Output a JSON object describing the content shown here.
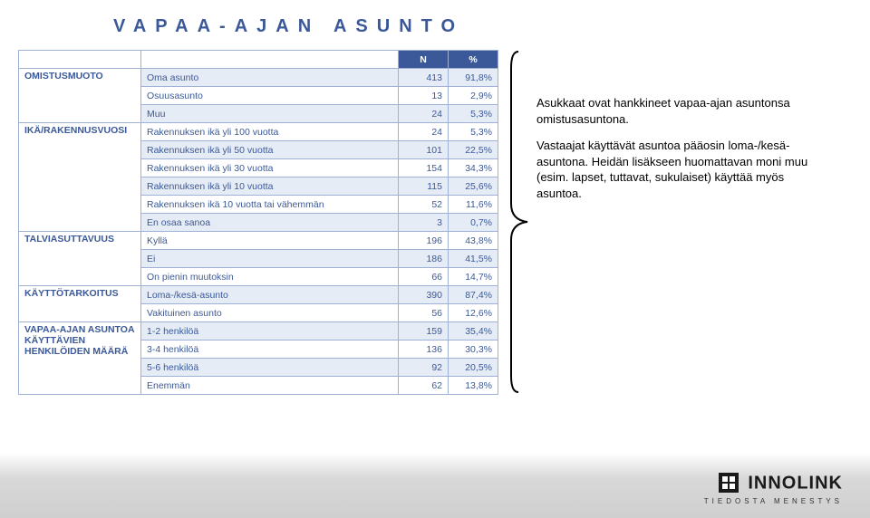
{
  "title": "VAPAA-AJAN ASUNTO",
  "headers": {
    "n": "N",
    "pct": "%"
  },
  "groups": [
    {
      "name": "OMISTUSMUOTO",
      "rows": [
        {
          "label": "Oma asunto",
          "n": "413",
          "pct": "91,8%",
          "shade": true
        },
        {
          "label": "Osuusasunto",
          "n": "13",
          "pct": "2,9%",
          "shade": false
        },
        {
          "label": "Muu",
          "n": "24",
          "pct": "5,3%",
          "shade": true
        }
      ]
    },
    {
      "name": "IKÄ/RAKENNUSVUOSI",
      "rows": [
        {
          "label": "Rakennuksen ikä yli 100 vuotta",
          "n": "24",
          "pct": "5,3%",
          "shade": false
        },
        {
          "label": "Rakennuksen ikä yli 50 vuotta",
          "n": "101",
          "pct": "22,5%",
          "shade": true
        },
        {
          "label": "Rakennuksen ikä yli 30 vuotta",
          "n": "154",
          "pct": "34,3%",
          "shade": false
        },
        {
          "label": "Rakennuksen ikä yli 10 vuotta",
          "n": "115",
          "pct": "25,6%",
          "shade": true
        },
        {
          "label": "Rakennuksen ikä 10 vuotta tai vähemmän",
          "n": "52",
          "pct": "11,6%",
          "shade": false
        },
        {
          "label": "En osaa sanoa",
          "n": "3",
          "pct": "0,7%",
          "shade": true
        }
      ]
    },
    {
      "name": "TALVIASUTTAVUUS",
      "rows": [
        {
          "label": "Kyllä",
          "n": "196",
          "pct": "43,8%",
          "shade": false
        },
        {
          "label": "Ei",
          "n": "186",
          "pct": "41,5%",
          "shade": true
        },
        {
          "label": "On pienin muutoksin",
          "n": "66",
          "pct": "14,7%",
          "shade": false
        }
      ]
    },
    {
      "name": "KÄYTTÖTARKOITUS",
      "rows": [
        {
          "label": "Loma-/kesä-asunto",
          "n": "390",
          "pct": "87,4%",
          "shade": true
        },
        {
          "label": "Vakituinen asunto",
          "n": "56",
          "pct": "12,6%",
          "shade": false
        }
      ]
    },
    {
      "name": "VAPAA-AJAN ASUNTOA KÄYTTÄVIEN HENKILÖIDEN MÄÄRÄ",
      "rows": [
        {
          "label": "1-2 henkilöä",
          "n": "159",
          "pct": "35,4%",
          "shade": true
        },
        {
          "label": "3-4 henkilöä",
          "n": "136",
          "pct": "30,3%",
          "shade": false
        },
        {
          "label": "5-6 henkilöä",
          "n": "92",
          "pct": "20,5%",
          "shade": true
        },
        {
          "label": "Enemmän",
          "n": "62",
          "pct": "13,8%",
          "shade": false
        }
      ]
    }
  ],
  "note": {
    "p1": "Asukkaat ovat hankkineet vapaa-ajan asuntonsa omistusasuntona.",
    "p2": "Vastaajat käyttävät asuntoa pääosin loma-/kesä-asuntona. Heidän lisäkseen huomattavan moni muu (esim. lapset, tuttavat, sukulaiset) käyttää myös asuntoa."
  },
  "logo": {
    "brand": "INNOLINK",
    "tagline": "TIEDOSTA MENESTYS"
  },
  "colors": {
    "accent": "#3b5998",
    "row_shade": "#e6ecf5",
    "border": "#9fb2d6",
    "text": "#3b5998",
    "note_text": "#000000"
  }
}
